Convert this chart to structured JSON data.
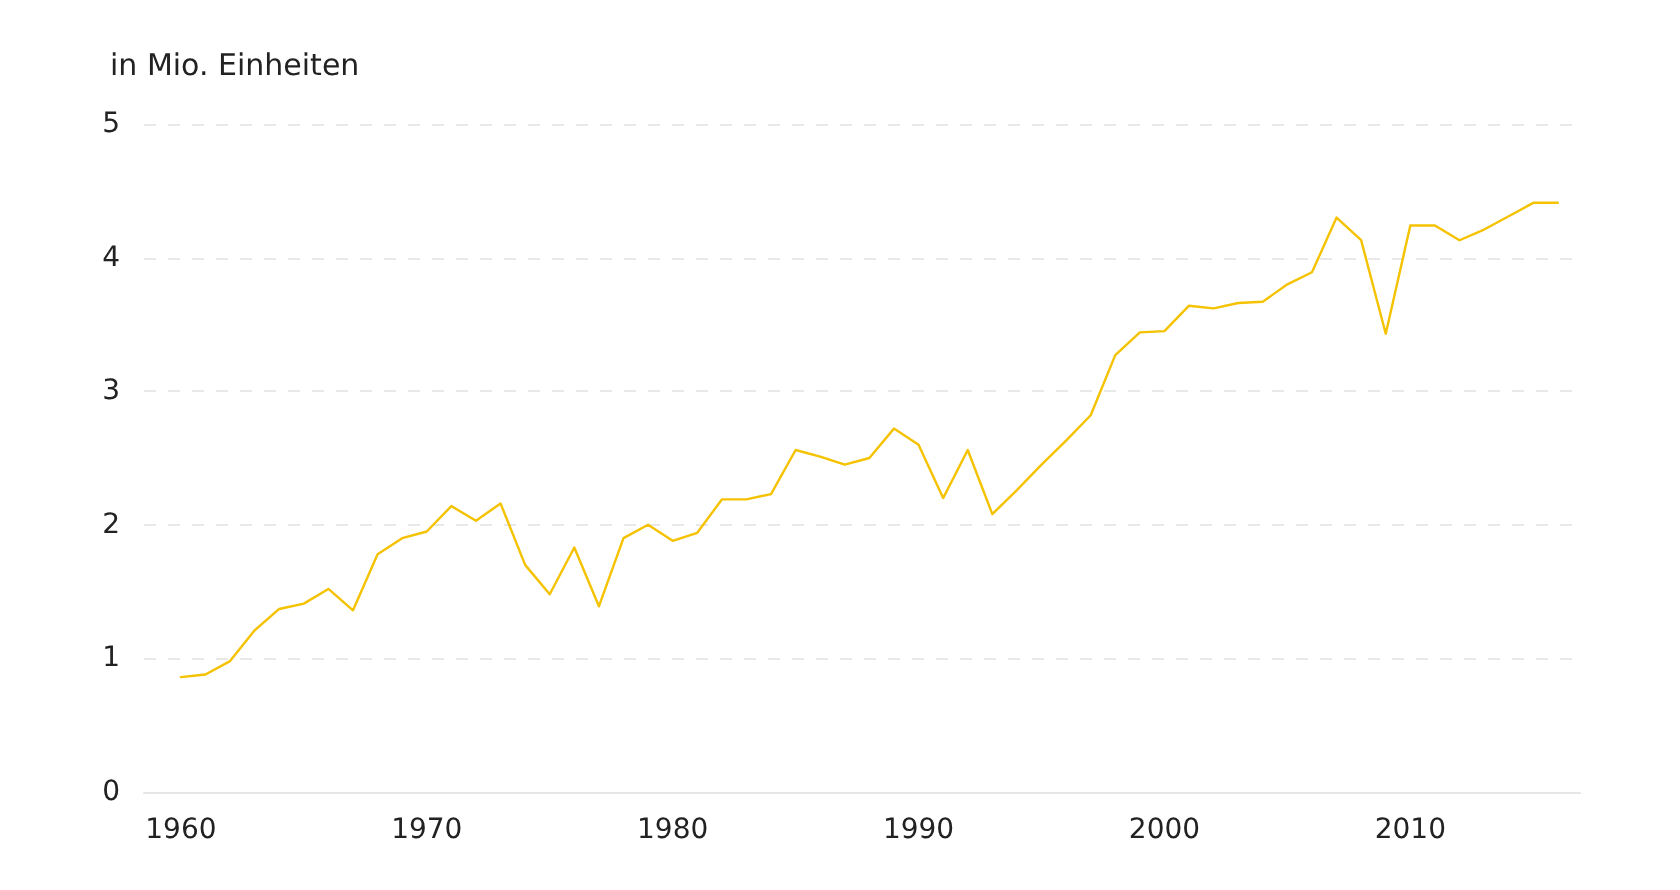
{
  "chart_data": {
    "type": "line",
    "ylabel": "in Mio. Einheiten",
    "x": [
      1960,
      1961,
      1962,
      1963,
      1964,
      1965,
      1966,
      1967,
      1968,
      1969,
      1970,
      1971,
      1972,
      1973,
      1974,
      1975,
      1976,
      1977,
      1978,
      1979,
      1980,
      1981,
      1982,
      1983,
      1984,
      1985,
      1986,
      1987,
      1988,
      1989,
      1990,
      1991,
      1992,
      1993,
      1994,
      1995,
      1996,
      1997,
      1998,
      1999,
      2000,
      2001,
      2002,
      2003,
      2004,
      2005,
      2006,
      2007,
      2008,
      2009,
      2010,
      2011,
      2012,
      2013,
      2014,
      2015,
      2016
    ],
    "series": [
      {
        "color": "#f5c200",
        "values": [
          0.86,
          0.88,
          0.98,
          1.21,
          1.37,
          1.41,
          1.52,
          1.36,
          1.78,
          1.9,
          1.95,
          2.14,
          2.03,
          2.16,
          1.7,
          1.48,
          1.83,
          1.39,
          1.9,
          2.0,
          1.88,
          1.94,
          2.19,
          2.19,
          2.23,
          2.56,
          2.51,
          2.45,
          2.5,
          2.72,
          2.6,
          2.2,
          2.56,
          2.08,
          2.26,
          2.45,
          2.63,
          2.82,
          3.27,
          3.44,
          3.45,
          3.64,
          3.62,
          3.66,
          3.67,
          3.8,
          3.89,
          4.3,
          4.13,
          3.43,
          4.24,
          4.24,
          4.13,
          4.21,
          4.31,
          4.41,
          4.41
        ]
      }
    ],
    "xlim": [
      1958.5,
      2016.9
    ],
    "xticks": [
      1960,
      1970,
      1980,
      1990,
      2000,
      2010
    ],
    "ylim": [
      0,
      5
    ],
    "yticks": [
      0,
      1,
      2,
      3,
      4,
      5
    ],
    "grid": "y",
    "marker": "none",
    "line_style": "solid"
  }
}
